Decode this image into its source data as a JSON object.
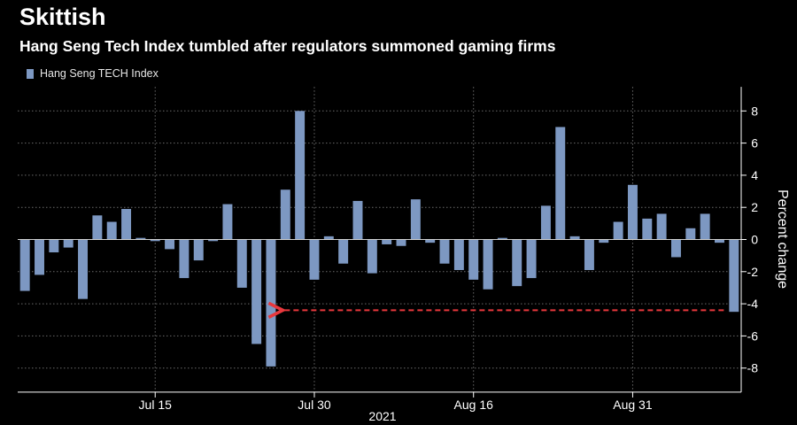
{
  "header": {
    "title": "Skittish",
    "subtitle": "Hang Seng Tech Index tumbled after regulators summoned gaming firms"
  },
  "chart_data": {
    "type": "bar",
    "title": "Skittish",
    "subtitle": "Hang Seng Tech Index tumbled after regulators summoned gaming firms",
    "ylabel": "Percent change",
    "xlabel": "2021",
    "ylim": [
      -9.5,
      9.5
    ],
    "yticks": [
      -8,
      -6,
      -4,
      -2,
      0,
      2,
      4,
      6,
      8
    ],
    "grid": true,
    "legend_position": "top-left",
    "colors": {
      "bar": "#7d98c2",
      "grid": "#6a6a6a",
      "arrow": "#e8383d"
    },
    "x_tick_labels": [
      {
        "label": "Jul 15",
        "index": 9
      },
      {
        "label": "Jul 30",
        "index": 20
      },
      {
        "label": "Aug 16",
        "index": 31
      },
      {
        "label": "Aug 31",
        "index": 42
      }
    ],
    "series": [
      {
        "name": "Hang Seng TECH Index",
        "values": [
          -3.2,
          -2.2,
          -0.8,
          -0.5,
          -3.7,
          1.5,
          1.1,
          1.9,
          0.1,
          -0.1,
          -0.6,
          -2.4,
          -1.3,
          -0.1,
          2.2,
          -3.0,
          -6.5,
          -7.9,
          3.1,
          8.0,
          -2.5,
          0.2,
          -1.5,
          2.4,
          -2.1,
          -0.3,
          -0.4,
          2.5,
          -0.2,
          -1.5,
          -1.9,
          -2.5,
          -3.1,
          0.1,
          -2.9,
          -2.4,
          2.1,
          7.0,
          0.2,
          -1.9,
          -0.2,
          1.1,
          3.4,
          1.3,
          1.6,
          -1.1,
          0.7,
          1.6,
          -0.2,
          -4.5
        ]
      }
    ],
    "annotation": {
      "type": "dashed-arrow",
      "from_index": 49,
      "to_index": 17,
      "y": -4.4
    }
  }
}
